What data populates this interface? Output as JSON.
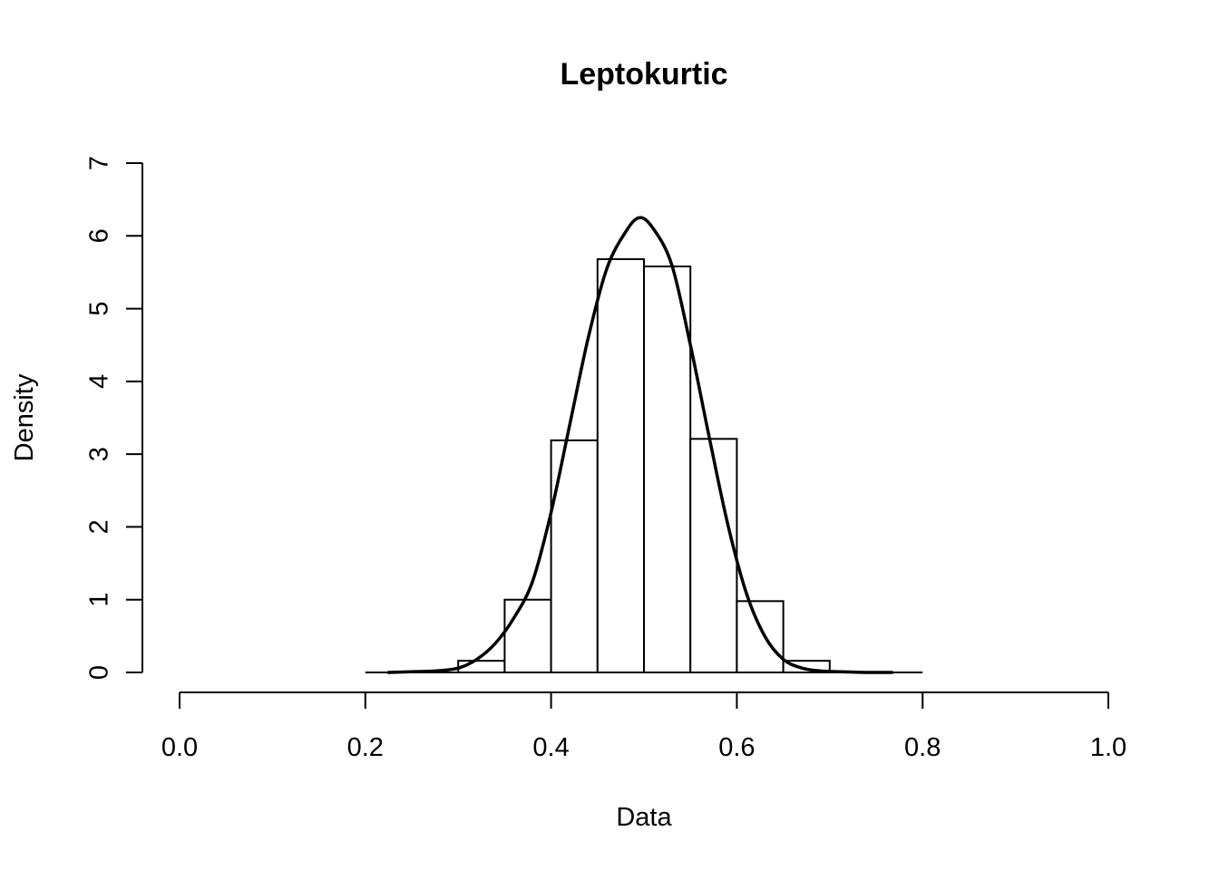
{
  "chart_data": {
    "type": "bar",
    "title": "Leptokurtic",
    "xlabel": "Data",
    "ylabel": "Density",
    "xlim": [
      0,
      1
    ],
    "ylim": [
      0,
      7
    ],
    "x_ticks": [
      "0.0",
      "0.2",
      "0.4",
      "0.6",
      "0.8",
      "1.0"
    ],
    "y_ticks": [
      "0",
      "1",
      "2",
      "3",
      "4",
      "5",
      "6",
      "7"
    ],
    "grid": false,
    "legend": "none",
    "bins": [
      {
        "from": 0.2,
        "to": 0.25,
        "density": 0.0
      },
      {
        "from": 0.25,
        "to": 0.3,
        "density": 0.0
      },
      {
        "from": 0.3,
        "to": 0.35,
        "density": 0.16
      },
      {
        "from": 0.35,
        "to": 0.4,
        "density": 1.0
      },
      {
        "from": 0.4,
        "to": 0.45,
        "density": 3.19
      },
      {
        "from": 0.45,
        "to": 0.5,
        "density": 5.68
      },
      {
        "from": 0.5,
        "to": 0.55,
        "density": 5.58
      },
      {
        "from": 0.55,
        "to": 0.6,
        "density": 3.21
      },
      {
        "from": 0.6,
        "to": 0.65,
        "density": 0.98
      },
      {
        "from": 0.65,
        "to": 0.7,
        "density": 0.16
      },
      {
        "from": 0.7,
        "to": 0.75,
        "density": 0.0
      },
      {
        "from": 0.75,
        "to": 0.8,
        "density": 0.0
      }
    ],
    "density_curve": {
      "x": [
        0.225,
        0.25,
        0.275,
        0.3,
        0.32,
        0.34,
        0.36,
        0.38,
        0.4,
        0.42,
        0.44,
        0.46,
        0.48,
        0.495,
        0.51,
        0.53,
        0.55,
        0.57,
        0.59,
        0.61,
        0.63,
        0.65,
        0.67,
        0.69,
        0.71,
        0.74,
        0.767
      ],
      "y": [
        0.0,
        0.01,
        0.02,
        0.06,
        0.18,
        0.4,
        0.75,
        1.25,
        2.2,
        3.4,
        4.6,
        5.55,
        6.05,
        6.25,
        6.1,
        5.6,
        4.5,
        3.25,
        2.05,
        1.1,
        0.5,
        0.18,
        0.06,
        0.02,
        0.01,
        0.0,
        0.0
      ]
    }
  }
}
